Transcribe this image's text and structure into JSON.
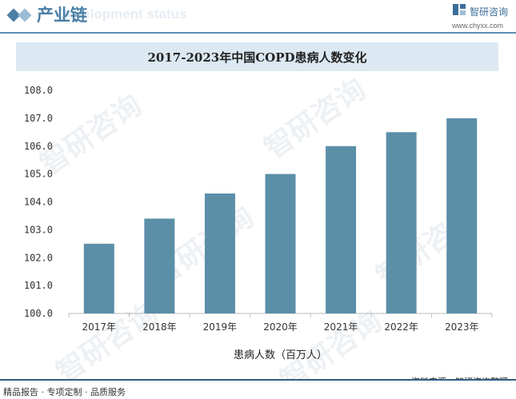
{
  "header": {
    "title": "产业链",
    "bg_text": "Development status"
  },
  "logo": {
    "name": "智研咨询",
    "url": "www.chyxx.com"
  },
  "watermark_text": "智研咨询",
  "footer": {
    "left": "精品报告 · 专项定制 · 品质服务",
    "source": "资料来源：智研咨询整理"
  },
  "colors": {
    "bar": "#5b8fa8",
    "accent": "#4b7fa6",
    "title_band": "#dce9f3"
  },
  "chart_data": {
    "type": "bar",
    "title": "2017-2023年中国COPD患病人数变化",
    "categories": [
      "2017年",
      "2018年",
      "2019年",
      "2020年",
      "2021年",
      "2022年",
      "2023年"
    ],
    "series": [
      {
        "name": "患病人数（百万人）",
        "values": [
          102.5,
          103.4,
          104.3,
          105.0,
          106.0,
          106.5,
          107.0
        ]
      }
    ],
    "ylim": [
      100.0,
      108.0
    ],
    "yticks": [
      "100.0",
      "101.0",
      "102.0",
      "103.0",
      "104.0",
      "105.0",
      "106.0",
      "107.0",
      "108.0"
    ],
    "grid": false,
    "legend_text": "患病人数（百万人）",
    "legend_position": "bottom"
  }
}
